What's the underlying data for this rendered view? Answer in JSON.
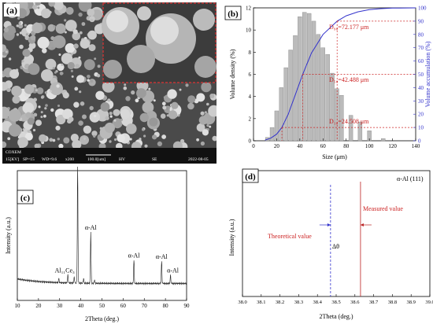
{
  "panels": {
    "a": {
      "label": "(a)",
      "scalebar": {
        "brand": "COXEM",
        "kv": "15[KV]",
        "sp": "SP=15",
        "wd": "WD=9.6",
        "mag": "x200",
        "scale": "100.0[um]",
        "mode1": "HV",
        "mode2": "SE",
        "date": "2022-08-05"
      }
    },
    "b": {
      "label": "(b)",
      "d90": "D₉₀=72.177 μm",
      "d50": "D₅₀=42.488 μm",
      "d10": "D₁₀=24.508 μm"
    },
    "c": {
      "label": "(c)",
      "peak_labels": [
        "α-Al",
        "α-Al",
        "α-Al",
        "α-Al",
        "α-Al",
        "Al₁₁Ce₃"
      ]
    },
    "d": {
      "label": "(d)",
      "title": "α-Al (111)",
      "measured": "Measured value",
      "theoretical": "Theoretical value",
      "delta": "Δθ"
    }
  },
  "chart_data": [
    {
      "id": "b",
      "type": "bar",
      "xlabel": "Size (μm)",
      "ylabel": "Volume density (%)",
      "y2label": "Volume accumulation (%)",
      "xlim": [
        0,
        140
      ],
      "ylim": [
        0,
        12
      ],
      "y2lim": [
        0,
        100
      ],
      "xticks": [
        0,
        20,
        40,
        60,
        80,
        100,
        120,
        140
      ],
      "yticks": [
        0,
        2,
        4,
        6,
        8,
        10,
        12
      ],
      "y2ticks": [
        0,
        10,
        20,
        30,
        40,
        50,
        60,
        70,
        80,
        90,
        100
      ],
      "bars_x": [
        12,
        16,
        20,
        24,
        28,
        32,
        36,
        40,
        44,
        48,
        52,
        56,
        60,
        64,
        68,
        72,
        76,
        84,
        92,
        100,
        112
      ],
      "bars_y": [
        0.3,
        1.2,
        2.7,
        4.8,
        6.6,
        8.2,
        9.5,
        11.2,
        11.6,
        11.5,
        10.8,
        9.6,
        8.4,
        7.8,
        6.1,
        4.7,
        4.1,
        2.3,
        1.7,
        0.9,
        0.2
      ],
      "series": [
        {
          "name": "",
          "type": "line",
          "color": "#3333cc",
          "x": [
            10,
            15,
            20,
            24.5,
            30,
            35,
            42.5,
            50,
            60,
            72.2,
            80,
            90,
            100,
            110,
            120,
            140
          ],
          "y": [
            0.5,
            2,
            5,
            10,
            20,
            32,
            50,
            66,
            80,
            90,
            94,
            97,
            98.7,
            99.4,
            99.8,
            100
          ]
        }
      ],
      "markers": [
        {
          "x": 72.177,
          "y2": 90
        },
        {
          "x": 42.488,
          "y2": 50
        },
        {
          "x": 24.508,
          "y2": 10
        }
      ]
    },
    {
      "id": "c",
      "type": "line",
      "xlabel": "2Theta (deg.)",
      "ylabel": "Intensity (a.u.)",
      "xlim": [
        10,
        90
      ],
      "xticks": [
        10,
        20,
        30,
        40,
        50,
        60,
        70,
        80,
        90
      ],
      "peaks": [
        {
          "x": 38.5,
          "h": 1.0,
          "label": "α-Al"
        },
        {
          "x": 44.7,
          "h": 0.44,
          "label": "α-Al"
        },
        {
          "x": 65.1,
          "h": 0.2,
          "label": "α-Al"
        },
        {
          "x": 78.2,
          "h": 0.19,
          "label": "α-Al"
        },
        {
          "x": 82.4,
          "h": 0.07,
          "label": "α-Al"
        },
        {
          "x": 33.9,
          "h": 0.07,
          "label": "Al₁₁Ce₃"
        },
        {
          "x": 29.6,
          "h": 0.035,
          "label": ""
        },
        {
          "x": 36.9,
          "h": 0.05,
          "label": ""
        },
        {
          "x": 41.3,
          "h": 0.04,
          "label": ""
        },
        {
          "x": 46.5,
          "h": 0.03,
          "label": ""
        }
      ]
    },
    {
      "id": "d",
      "type": "line",
      "xlabel": "2Theta (deg.)",
      "ylabel": "Intensity (a.u.)",
      "xlim": [
        38.0,
        39.0
      ],
      "xticks": [
        38.0,
        38.1,
        38.2,
        38.3,
        38.4,
        38.5,
        38.6,
        38.7,
        38.8,
        38.9,
        39.0
      ],
      "peak_center": 38.63,
      "theoretical": 38.47,
      "measured": 38.63
    }
  ]
}
